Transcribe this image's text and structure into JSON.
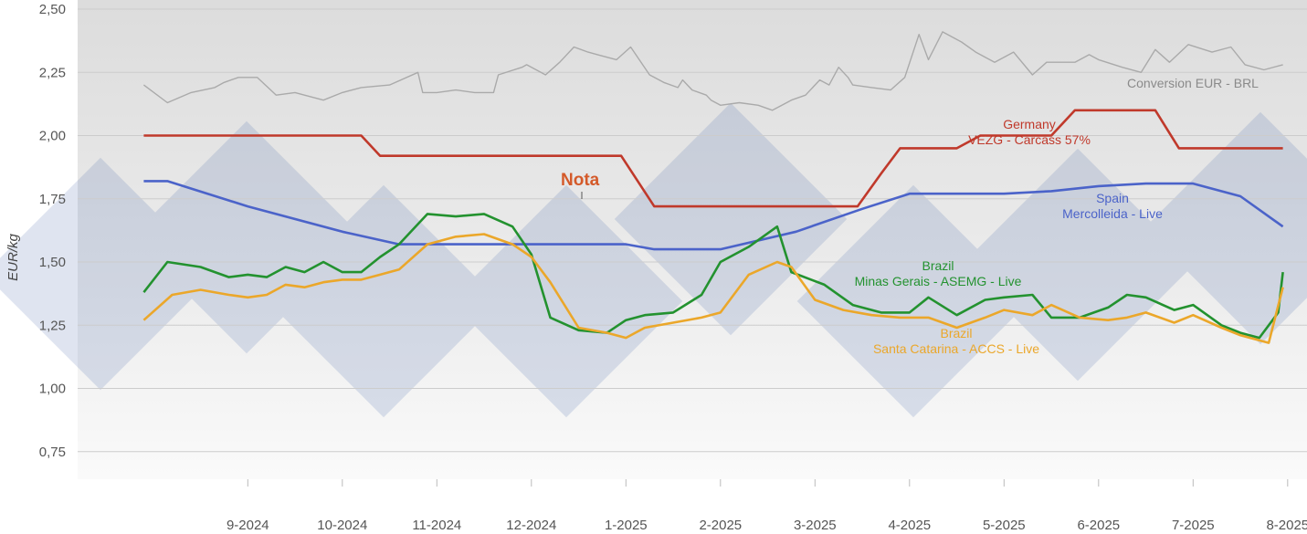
{
  "chart_data": {
    "type": "line",
    "ylabel": "EUR/kg",
    "ylim": [
      0.75,
      2.5
    ],
    "y_ticks": [
      "2,50",
      "2,25",
      "2,00",
      "1,75",
      "1,50",
      "1,25",
      "1,00",
      "0,75"
    ],
    "x_tick_labels": [
      "9-2024",
      "10-2024",
      "11-2024",
      "12-2024",
      "1-2025",
      "2-2025",
      "3-2025",
      "4-2025",
      "5-2025",
      "6-2025",
      "7-2025",
      "8-2025"
    ],
    "x_unit": "months from 8-2024",
    "grid": "horizontal",
    "annotation": "Nota",
    "series": [
      {
        "name": "Conversion EUR - BRL",
        "label_lines": [
          "Conversion EUR - BRL"
        ],
        "color": "#aaaaaa",
        "x": [
          -0.1,
          0.15,
          0.4,
          0.65,
          0.75,
          0.9,
          1.1,
          1.3,
          1.5,
          1.8,
          2.0,
          2.2,
          2.5,
          2.8,
          2.85,
          3.0,
          3.2,
          3.4,
          3.6,
          3.65,
          3.9,
          3.95,
          4.15,
          4.3,
          4.45,
          4.6,
          4.7,
          4.9,
          5.05,
          5.25,
          5.4,
          5.55,
          5.6,
          5.7,
          5.85,
          5.9,
          6.0,
          6.2,
          6.4,
          6.55,
          6.7,
          6.75,
          6.9,
          7.05,
          7.15,
          7.25,
          7.35,
          7.4,
          7.6,
          7.8,
          7.95,
          8.1,
          8.2,
          8.35,
          8.55,
          8.7,
          8.9,
          9.1,
          9.3,
          9.45,
          9.6,
          9.75,
          9.9,
          10.0,
          10.25,
          10.45,
          10.6,
          10.75,
          10.95,
          11.2,
          11.4,
          11.55,
          11.75,
          11.95
        ],
        "y": [
          2.2,
          2.13,
          2.17,
          2.19,
          2.21,
          2.23,
          2.23,
          2.16,
          2.17,
          2.14,
          2.17,
          2.19,
          2.2,
          2.25,
          2.17,
          2.17,
          2.18,
          2.17,
          2.17,
          2.24,
          2.27,
          2.28,
          2.24,
          2.29,
          2.35,
          2.33,
          2.32,
          2.3,
          2.35,
          2.24,
          2.21,
          2.19,
          2.22,
          2.18,
          2.16,
          2.14,
          2.12,
          2.13,
          2.12,
          2.1,
          2.13,
          2.14,
          2.16,
          2.22,
          2.2,
          2.27,
          2.23,
          2.2,
          2.19,
          2.18,
          2.23,
          2.4,
          2.3,
          2.41,
          2.37,
          2.33,
          2.29,
          2.33,
          2.24,
          2.29,
          2.29,
          2.29,
          2.32,
          2.3,
          2.27,
          2.25,
          2.34,
          2.29,
          2.36,
          2.33,
          2.35,
          2.28,
          2.26,
          2.28
        ]
      },
      {
        "name": "Germany VEZG - Carcass 57%",
        "label_lines": [
          "Germany",
          "VEZG - Carcass 57%"
        ],
        "color": "#c0392b",
        "x": [
          -0.1,
          2.2,
          2.4,
          4.95,
          5.3,
          6.0,
          7.45,
          7.7,
          7.9,
          8.5,
          8.75,
          9.5,
          9.75,
          10.6,
          10.85,
          11.95
        ],
        "y": [
          2.0,
          2.0,
          1.92,
          1.92,
          1.72,
          1.72,
          1.72,
          1.85,
          1.95,
          1.95,
          2.0,
          2.0,
          2.1,
          2.1,
          1.95,
          1.95
        ]
      },
      {
        "name": "Spain Mercolleida - Live",
        "label_lines": [
          "Spain",
          "Mercolleida - Live"
        ],
        "color": "#4b63c9",
        "x": [
          -0.1,
          0.15,
          1.0,
          2.0,
          2.6,
          3.0,
          4.0,
          4.5,
          5.0,
          5.3,
          6.0,
          6.8,
          7.5,
          8.0,
          8.3,
          9.0,
          9.5,
          10.0,
          10.5,
          11.0,
          11.5,
          11.95
        ],
        "y": [
          1.82,
          1.82,
          1.72,
          1.62,
          1.57,
          1.57,
          1.57,
          1.57,
          1.57,
          1.55,
          1.55,
          1.62,
          1.71,
          1.77,
          1.77,
          1.77,
          1.78,
          1.8,
          1.81,
          1.81,
          1.76,
          1.64
        ]
      },
      {
        "name": "Brazil Minas Gerais - ASEMG - Live",
        "label_lines": [
          "Brazil",
          "Minas Gerais - ASEMG - Live"
        ],
        "color": "#23922f",
        "x": [
          -0.1,
          0.15,
          0.5,
          0.8,
          1.0,
          1.2,
          1.4,
          1.6,
          1.8,
          2.0,
          2.2,
          2.4,
          2.6,
          2.9,
          3.2,
          3.5,
          3.8,
          4.0,
          4.2,
          4.5,
          4.8,
          5.0,
          5.2,
          5.5,
          5.8,
          6.0,
          6.3,
          6.6,
          6.75,
          7.1,
          7.4,
          7.7,
          8.0,
          8.2,
          8.5,
          8.8,
          9.0,
          9.3,
          9.5,
          9.8,
          10.1,
          10.3,
          10.5,
          10.8,
          11.0,
          11.3,
          11.5,
          11.7,
          11.9,
          11.95
        ],
        "y": [
          1.38,
          1.5,
          1.48,
          1.44,
          1.45,
          1.44,
          1.48,
          1.46,
          1.5,
          1.46,
          1.46,
          1.52,
          1.57,
          1.69,
          1.68,
          1.69,
          1.64,
          1.53,
          1.28,
          1.23,
          1.22,
          1.27,
          1.29,
          1.3,
          1.37,
          1.5,
          1.56,
          1.64,
          1.46,
          1.41,
          1.33,
          1.3,
          1.3,
          1.36,
          1.29,
          1.35,
          1.36,
          1.37,
          1.28,
          1.28,
          1.32,
          1.37,
          1.36,
          1.31,
          1.33,
          1.25,
          1.22,
          1.2,
          1.3,
          1.46
        ]
      },
      {
        "name": "Brazil Santa Catarina - ACCS - Live",
        "label_lines": [
          "Brazil",
          "Santa Catarina - ACCS - Live"
        ],
        "color": "#eba72a",
        "x": [
          -0.1,
          0.2,
          0.5,
          0.8,
          1.0,
          1.2,
          1.4,
          1.6,
          1.8,
          2.0,
          2.2,
          2.4,
          2.6,
          2.9,
          3.2,
          3.5,
          3.8,
          4.0,
          4.2,
          4.5,
          4.8,
          5.0,
          5.2,
          5.5,
          5.8,
          6.0,
          6.3,
          6.6,
          6.75,
          7.0,
          7.3,
          7.6,
          7.9,
          8.2,
          8.5,
          8.8,
          9.0,
          9.3,
          9.5,
          9.8,
          10.1,
          10.3,
          10.5,
          10.8,
          11.0,
          11.3,
          11.5,
          11.8,
          11.95
        ],
        "y": [
          1.27,
          1.37,
          1.39,
          1.37,
          1.36,
          1.37,
          1.41,
          1.4,
          1.42,
          1.43,
          1.43,
          1.45,
          1.47,
          1.57,
          1.6,
          1.61,
          1.57,
          1.52,
          1.42,
          1.24,
          1.22,
          1.2,
          1.24,
          1.26,
          1.28,
          1.3,
          1.45,
          1.5,
          1.48,
          1.35,
          1.31,
          1.29,
          1.28,
          1.28,
          1.24,
          1.28,
          1.31,
          1.29,
          1.33,
          1.28,
          1.27,
          1.28,
          1.3,
          1.26,
          1.29,
          1.24,
          1.21,
          1.18,
          1.4
        ]
      }
    ]
  }
}
